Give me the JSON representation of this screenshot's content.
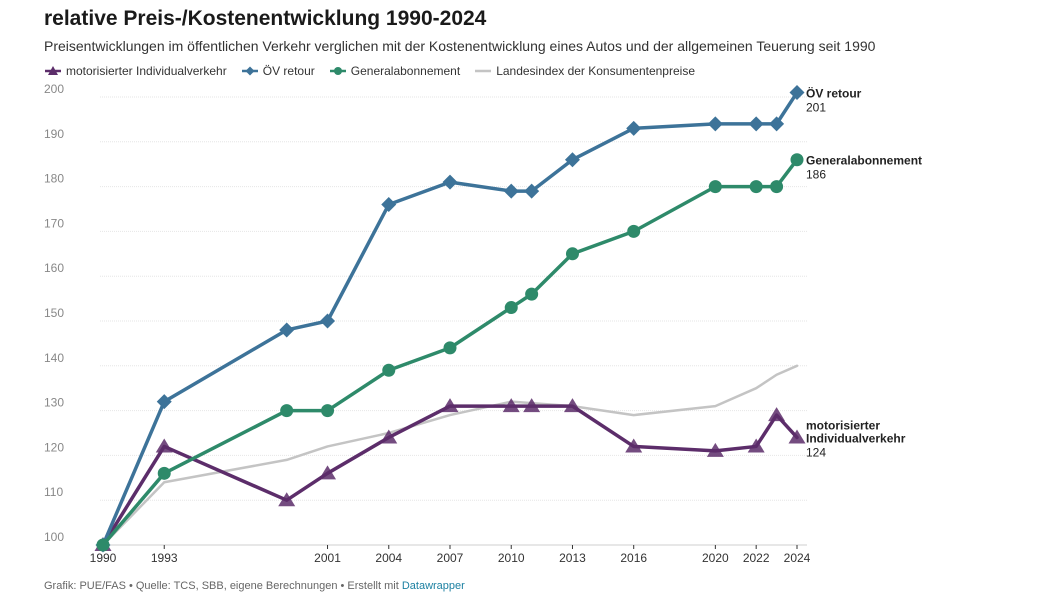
{
  "title": "relative Preis-/Kostenentwicklung 1990-2024",
  "subtitle": "Preisentwicklungen im öffentlichen Verkehr verglichen mit der Kostenentwicklung eines Autos und der allgemeinen Teuerung seit 1990",
  "footer": {
    "text": "Grafik: PUE/FAS • Quelle: TCS, SBB, eigene Berechnungen • Erstellt mit ",
    "brand": "Datawrapper"
  },
  "chart_data": {
    "type": "line",
    "xlim": [
      1990,
      2024
    ],
    "ylim": [
      100,
      200
    ],
    "x_ticks": [
      1990,
      1993,
      2001,
      2004,
      2007,
      2010,
      2013,
      2016,
      2020,
      2022,
      2024
    ],
    "y_ticks": [
      100,
      110,
      120,
      130,
      140,
      150,
      160,
      170,
      180,
      190,
      200
    ],
    "grid": true,
    "legend_position": "top-left",
    "series": [
      {
        "name": "motorisierter Individualverkehr",
        "color": "#5c2d6a",
        "marker": "triangle",
        "x": [
          1990,
          1993,
          1999,
          2001,
          2004,
          2007,
          2010,
          2011,
          2013,
          2016,
          2020,
          2022,
          2023,
          2024
        ],
        "y": [
          100,
          122,
          110,
          116,
          124,
          131,
          131,
          131,
          131,
          122,
          121,
          122,
          129,
          124
        ],
        "end_label": [
          "motorisierter",
          "Individualverkehr"
        ],
        "end_value": "124"
      },
      {
        "name": "ÖV retour",
        "color": "#3d7399",
        "marker": "diamond",
        "x": [
          1990,
          1993,
          1999,
          2001,
          2004,
          2007,
          2010,
          2011,
          2013,
          2016,
          2020,
          2022,
          2023,
          2024
        ],
        "y": [
          100,
          132,
          148,
          150,
          176,
          181,
          179,
          179,
          186,
          193,
          194,
          194,
          194,
          201
        ],
        "end_label": [
          "ÖV retour"
        ],
        "end_value": "201"
      },
      {
        "name": "Generalabonnement",
        "color": "#2e8a6a",
        "marker": "circle",
        "x": [
          1990,
          1993,
          1999,
          2001,
          2004,
          2007,
          2010,
          2011,
          2013,
          2016,
          2020,
          2022,
          2023,
          2024
        ],
        "y": [
          100,
          116,
          130,
          130,
          139,
          144,
          153,
          156,
          165,
          170,
          180,
          180,
          180,
          186
        ],
        "end_label": [
          "Generalabonnement"
        ],
        "end_value": "186"
      },
      {
        "name": "Landesindex der Konsumentenpreise",
        "color": "#c4c4c4",
        "marker": "none",
        "x": [
          1990,
          1993,
          1999,
          2001,
          2004,
          2007,
          2010,
          2013,
          2016,
          2020,
          2022,
          2023,
          2024
        ],
        "y": [
          100,
          114,
          119,
          122,
          125,
          129,
          132,
          131,
          129,
          131,
          135,
          138,
          140
        ]
      }
    ]
  }
}
